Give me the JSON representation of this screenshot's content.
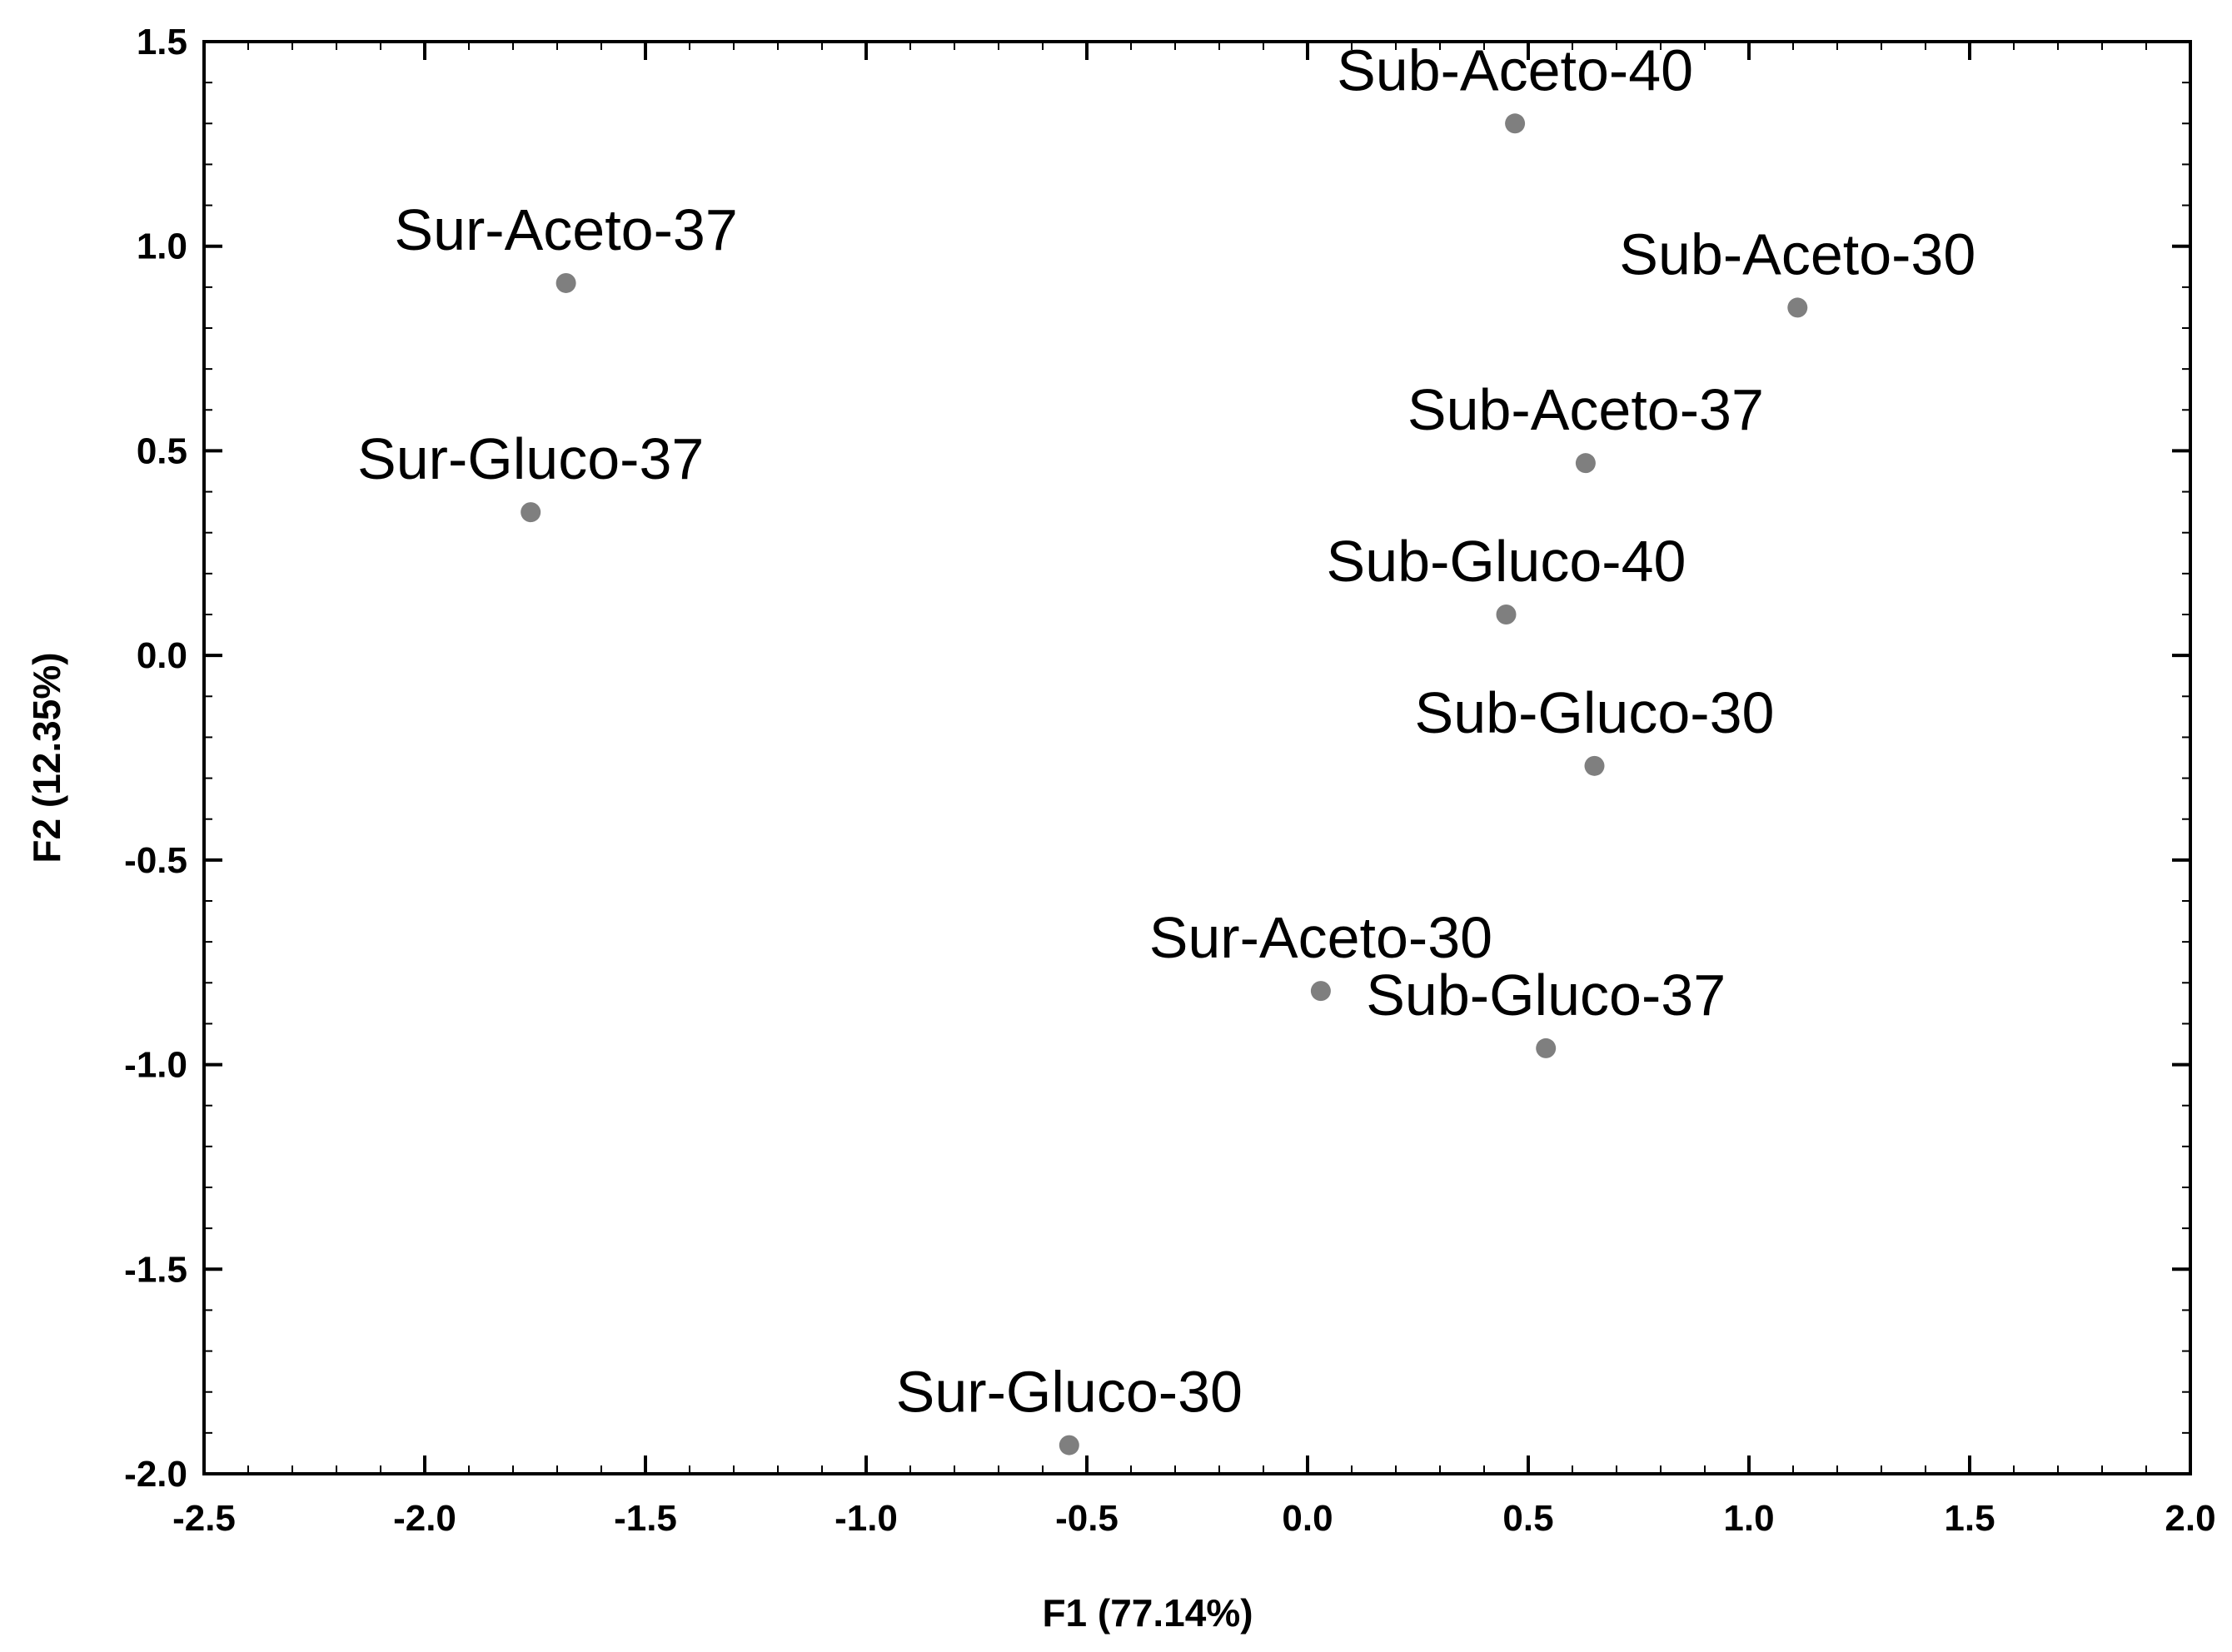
{
  "chart_data": {
    "type": "scatter",
    "title": "",
    "xlabel": "F1 (77.14%)",
    "ylabel": "F2 (12.35%)",
    "xlim": [
      -2.5,
      2.0
    ],
    "ylim": [
      -2.0,
      1.5
    ],
    "xticks": [
      "-2.5",
      "-2.0",
      "-1.5",
      "-1.0",
      "-0.5",
      "0.0",
      "0.5",
      "1.0",
      "1.5",
      "2.0"
    ],
    "yticks": [
      "1.5",
      "1.0",
      "0.5",
      "0.0",
      "-0.5",
      "-1.0",
      "-1.5",
      "-2.0"
    ],
    "grid": false,
    "legend": "none",
    "point_color": "#7f7f7f",
    "points": [
      {
        "label": "Sub-Aceto-40",
        "x": 0.47,
        "y": 1.3
      },
      {
        "label": "Sur-Aceto-37",
        "x": -1.68,
        "y": 0.91
      },
      {
        "label": "Sub-Aceto-30",
        "x": 1.11,
        "y": 0.85
      },
      {
        "label": "Sub-Aceto-37",
        "x": 0.63,
        "y": 0.47
      },
      {
        "label": "Sur-Gluco-37",
        "x": -1.76,
        "y": 0.35
      },
      {
        "label": "Sub-Gluco-40",
        "x": 0.45,
        "y": 0.1
      },
      {
        "label": "Sub-Gluco-30",
        "x": 0.65,
        "y": -0.27
      },
      {
        "label": "Sur-Aceto-30",
        "x": 0.03,
        "y": -0.82
      },
      {
        "label": "Sub-Gluco-37",
        "x": 0.54,
        "y": -0.96
      },
      {
        "label": "Sur-Gluco-30",
        "x": -0.54,
        "y": -1.93
      }
    ]
  }
}
